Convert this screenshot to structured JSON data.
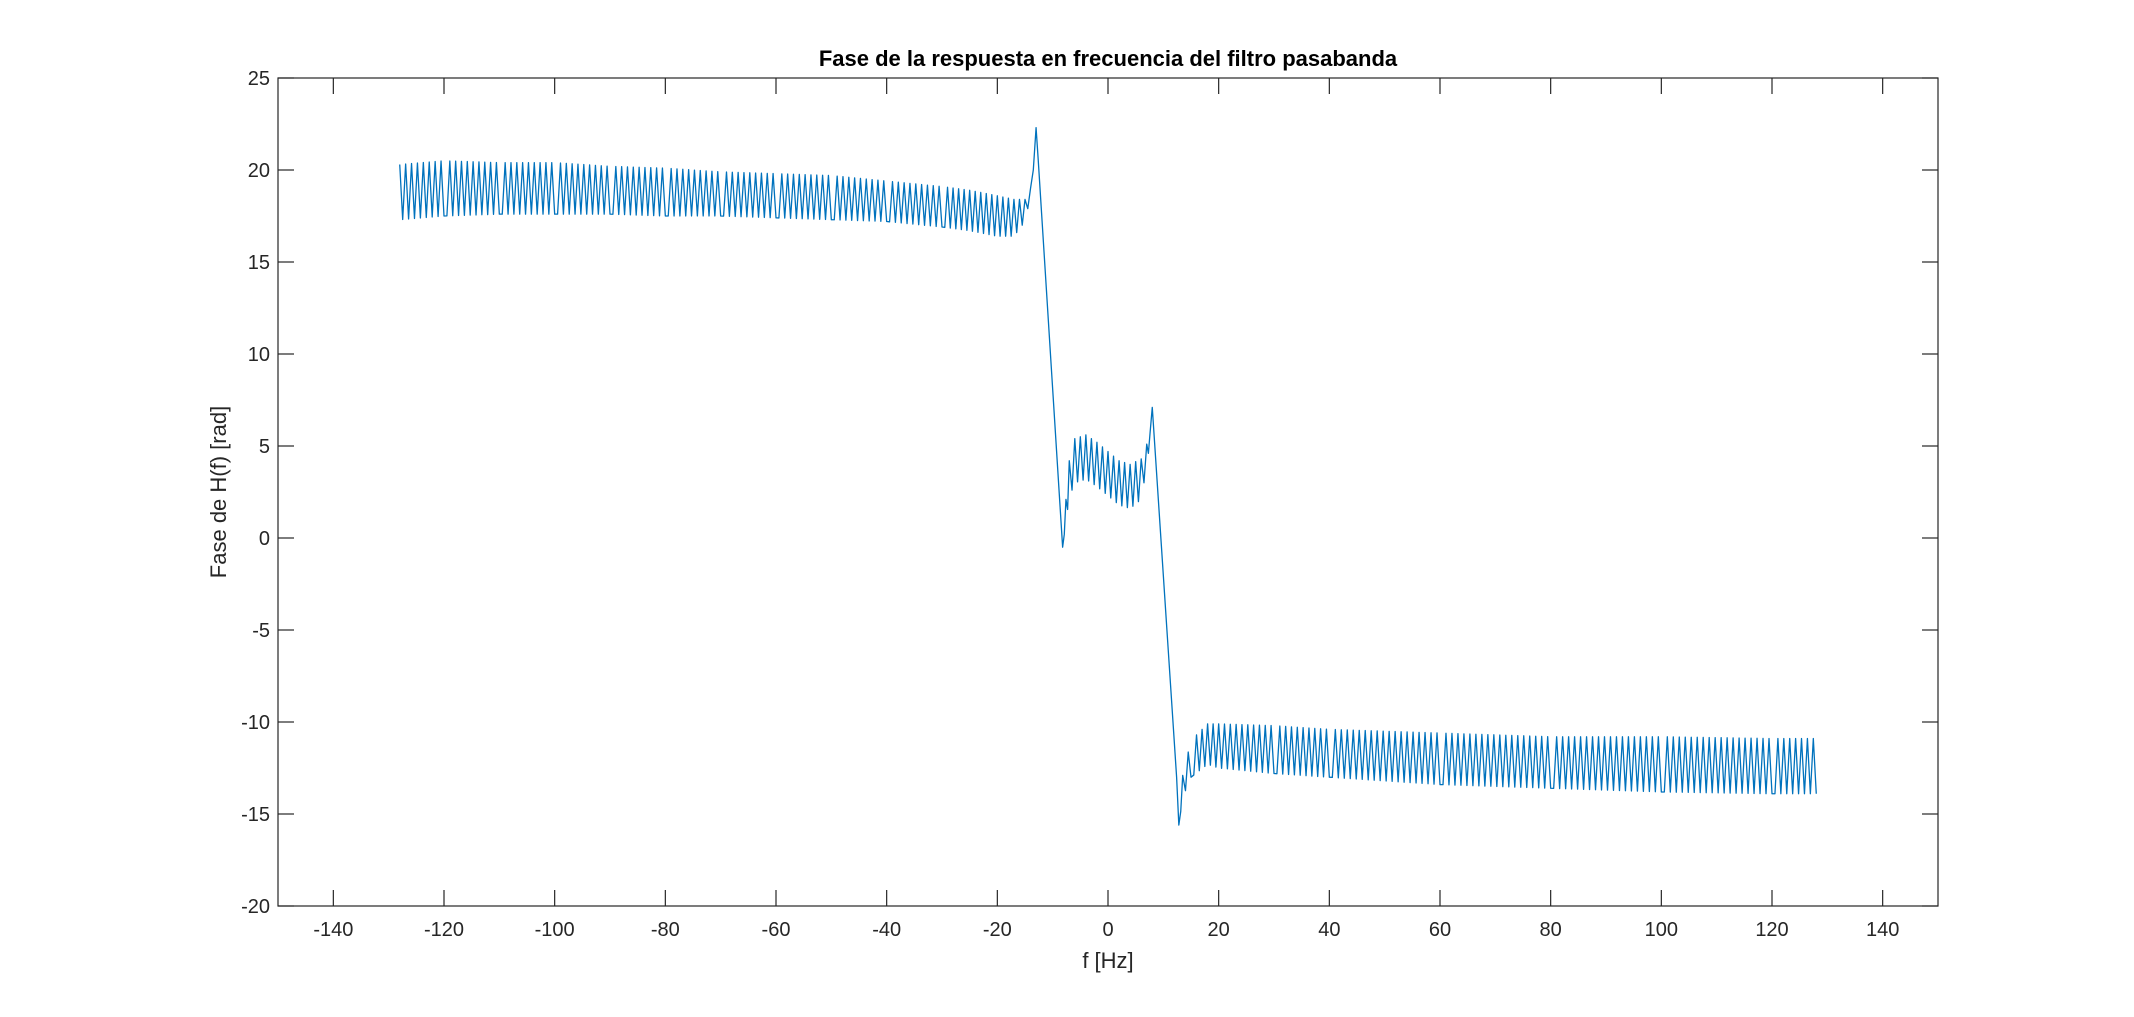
{
  "chart_data": {
    "type": "line",
    "title": "Fase de la respuesta en frecuencia del filtro pasabanda",
    "xlabel": "f [Hz]",
    "ylabel": "Fase de H(f) [rad]",
    "xlim": [
      -150,
      150
    ],
    "ylim": [
      -20,
      25
    ],
    "xticks": [
      -140,
      -120,
      -100,
      -80,
      -60,
      -40,
      -20,
      0,
      20,
      40,
      60,
      80,
      100,
      120,
      140
    ],
    "yticks": [
      -20,
      -15,
      -10,
      -5,
      0,
      5,
      10,
      15,
      20,
      25
    ],
    "grid": false,
    "line_color": "#0072BD",
    "series": [
      {
        "ripple_period_hz": 1.1,
        "x": [
          -128,
          -120,
          -110,
          -100,
          -90,
          -80,
          -70,
          -60,
          -50,
          -40,
          -30,
          -25,
          -20,
          -17,
          -15,
          -14,
          -13.5,
          -13,
          -12.6,
          -8.2,
          -7.6,
          -7,
          -6,
          -4,
          -2,
          0,
          2,
          4,
          6,
          7,
          7.6,
          8.0,
          12.4,
          12.8,
          13.5,
          15,
          18,
          20,
          30,
          40,
          60,
          80,
          100,
          120,
          128
        ],
        "y": [
          18.8,
          19.0,
          19.0,
          19.0,
          18.9,
          18.8,
          18.7,
          18.6,
          18.5,
          18.3,
          18.0,
          17.8,
          17.5,
          17.4,
          17.8,
          18.8,
          20.0,
          22.3,
          20.5,
          -0.5,
          1.5,
          3.2,
          4.2,
          4.4,
          4.0,
          3.5,
          3.0,
          2.8,
          3.2,
          4.5,
          5.5,
          7.1,
          -13.0,
          -15.6,
          -13.5,
          -12.0,
          -11.2,
          -11.3,
          -11.5,
          -11.7,
          -12.0,
          -12.2,
          -12.3,
          -12.4,
          -12.4
        ],
        "ripple_amplitude": [
          1.5,
          1.5,
          1.4,
          1.4,
          1.3,
          1.3,
          1.2,
          1.2,
          1.2,
          1.1,
          1.1,
          1.1,
          1.1,
          1.0,
          0.6,
          0.2,
          0,
          0,
          0,
          0,
          0.6,
          1.0,
          1.2,
          1.2,
          1.2,
          1.2,
          1.2,
          1.2,
          1.1,
          0.6,
          0.2,
          0,
          0,
          0,
          0.6,
          1.0,
          1.1,
          1.2,
          1.3,
          1.3,
          1.4,
          1.4,
          1.5,
          1.5,
          1.5
        ]
      }
    ]
  }
}
